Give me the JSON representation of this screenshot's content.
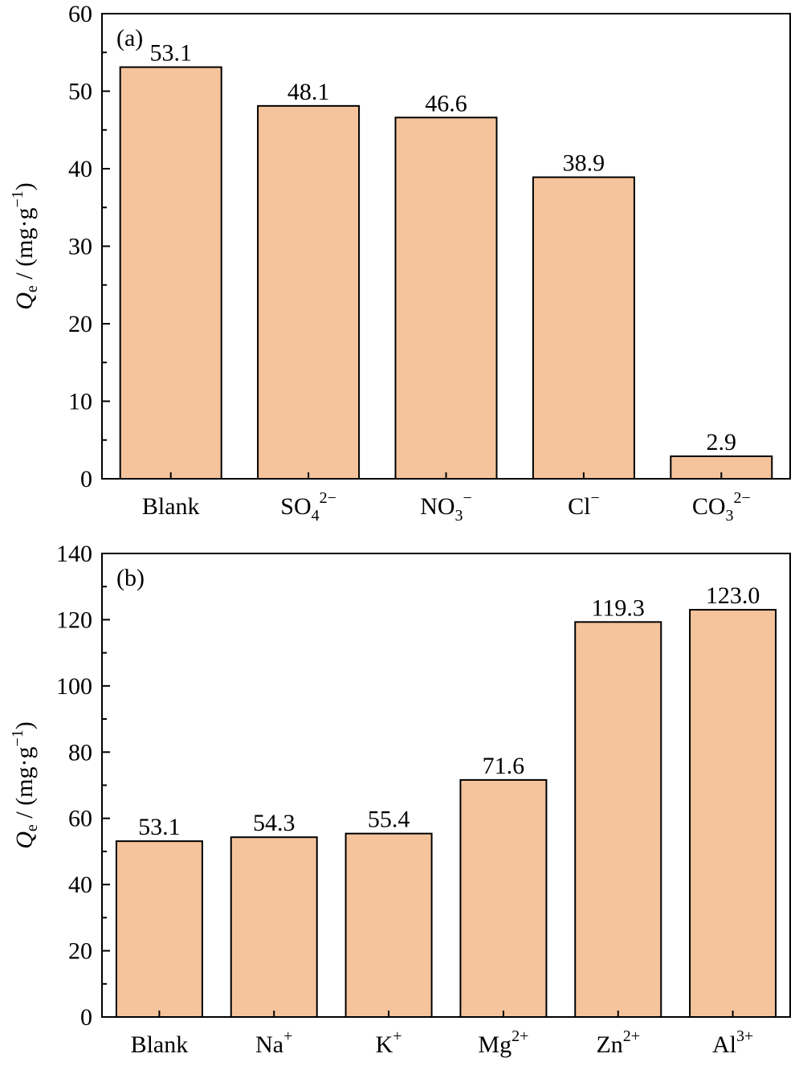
{
  "colors": {
    "bar": "#f5c49c",
    "stroke": "#000000"
  },
  "chart_data": [
    {
      "type": "bar",
      "panel_label": "(a)",
      "categories": [
        {
          "base": "Blank"
        },
        {
          "base": "SO",
          "sub": "4",
          "sup": "2−"
        },
        {
          "base": "NO",
          "sub": "3",
          "sup": "−"
        },
        {
          "base": "Cl",
          "sup": "−"
        },
        {
          "base": "CO",
          "sub": "3",
          "sup": "2−"
        }
      ],
      "values": [
        53.1,
        48.1,
        46.6,
        38.9,
        2.9
      ],
      "data_labels": [
        "53.1",
        "48.1",
        "46.6",
        "38.9",
        "2.9"
      ],
      "ylabel": {
        "symbol": "Q",
        "sub": "e",
        "unit": " / (mg·g",
        "unit_sup": "−1",
        "close": ")"
      },
      "ylim": [
        0,
        60
      ],
      "yticks": [
        0,
        10,
        20,
        30,
        40,
        50,
        60
      ],
      "grid": false
    },
    {
      "type": "bar",
      "panel_label": "(b)",
      "categories": [
        {
          "base": "Blank"
        },
        {
          "base": "Na",
          "sup": "+"
        },
        {
          "base": "K",
          "sup": "+"
        },
        {
          "base": "Mg",
          "sup": "2+"
        },
        {
          "base": "Zn",
          "sup": "2+"
        },
        {
          "base": "Al",
          "sup": "3+"
        }
      ],
      "values": [
        53.1,
        54.3,
        55.4,
        71.6,
        119.3,
        123.0
      ],
      "data_labels": [
        "53.1",
        "54.3",
        "55.4",
        "71.6",
        "119.3",
        "123.0"
      ],
      "ylabel": {
        "symbol": "Q",
        "sub": "e",
        "unit": " / (mg·g",
        "unit_sup": "−1",
        "close": ")"
      },
      "ylim": [
        0,
        140
      ],
      "yticks": [
        0,
        20,
        40,
        60,
        80,
        100,
        120,
        140
      ],
      "grid": false
    }
  ]
}
